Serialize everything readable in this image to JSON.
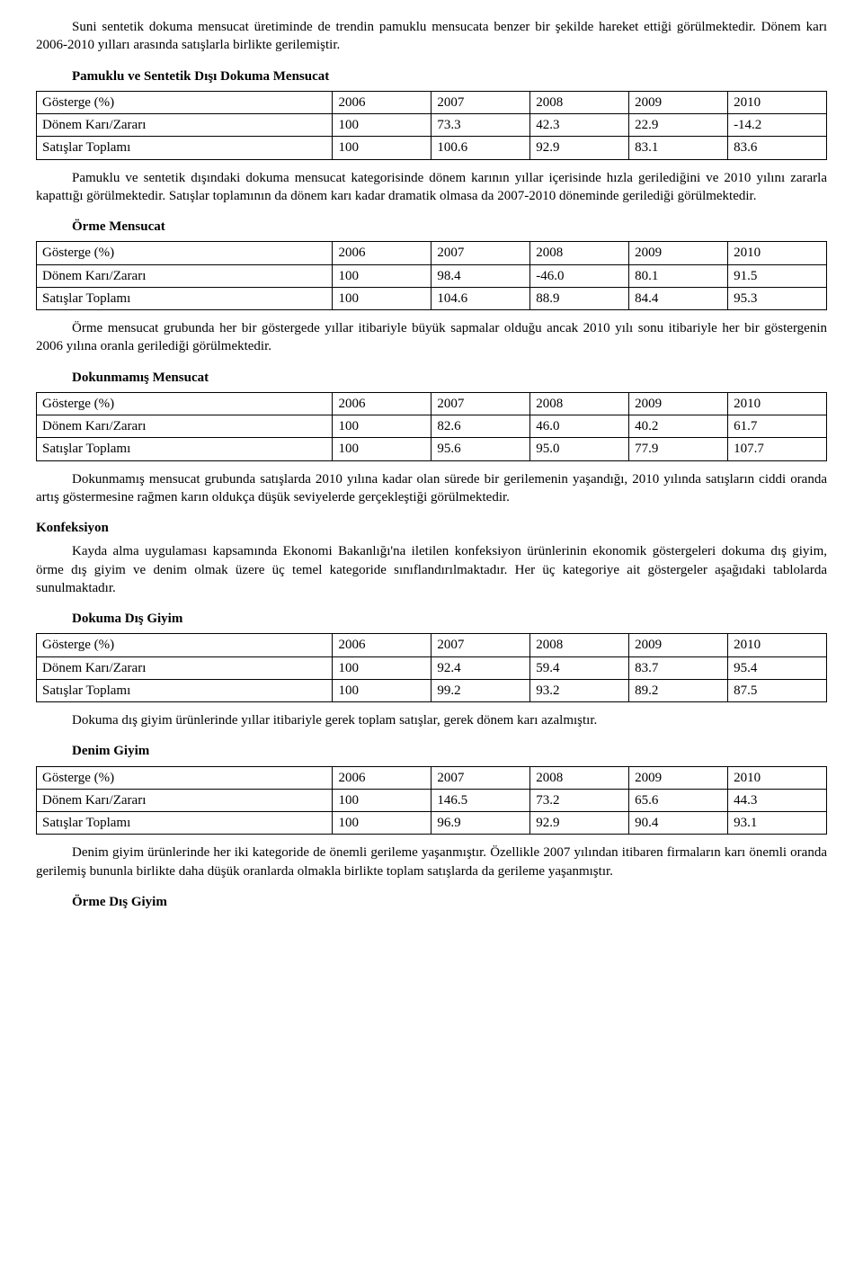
{
  "p_intro": "Suni sentetik dokuma mensucat üretiminde de trendin pamuklu mensucata benzer bir şekilde hareket ettiği görülmektedir. Dönem karı 2006-2010 yılları arasında satışlarla birlikte gerilemiştir.",
  "labels": {
    "gosterge": "Gösterge (%)",
    "donem": "Dönem Karı/Zararı",
    "satis": "Satışlar Toplamı",
    "years": [
      "2006",
      "2007",
      "2008",
      "2009",
      "2010"
    ]
  },
  "t1": {
    "title": "Pamuklu ve Sentetik Dışı Dokuma Mensucat",
    "donem": [
      "100",
      "73.3",
      "42.3",
      "22.9",
      "-14.2"
    ],
    "satis": [
      "100",
      "100.6",
      "92.9",
      "83.1",
      "83.6"
    ]
  },
  "p1": "Pamuklu ve sentetik dışındaki dokuma mensucat kategorisinde dönem karının yıllar içerisinde hızla gerilediğini ve 2010 yılını zararla kapattığı görülmektedir. Satışlar toplamının da dönem karı kadar dramatik olmasa da 2007-2010 döneminde gerilediği görülmektedir.",
  "t2": {
    "title": "Örme Mensucat",
    "donem": [
      "100",
      "98.4",
      "-46.0",
      "80.1",
      "91.5"
    ],
    "satis": [
      "100",
      "104.6",
      "88.9",
      "84.4",
      "95.3"
    ]
  },
  "p2": "Örme mensucat grubunda her bir göstergede yıllar itibariyle büyük sapmalar olduğu ancak 2010 yılı sonu itibariyle her bir göstergenin 2006 yılına oranla gerilediği görülmektedir.",
  "t3": {
    "title": "Dokunmamış Mensucat",
    "donem": [
      "100",
      "82.6",
      "46.0",
      "40.2",
      "61.7"
    ],
    "satis": [
      "100",
      "95.6",
      "95.0",
      "77.9",
      "107.7"
    ]
  },
  "p3": "Dokunmamış mensucat grubunda satışlarda 2010 yılına kadar olan sürede bir gerilemenin yaşandığı, 2010 yılında satışların ciddi oranda artış göstermesine rağmen karın oldukça düşük seviyelerde gerçekleştiği görülmektedir.",
  "h_konf": "Konfeksiyon",
  "p_konf": "Kayda alma uygulaması kapsamında Ekonomi Bakanlığı'na iletilen konfeksiyon ürünlerinin ekonomik göstergeleri dokuma dış giyim, örme dış giyim ve denim olmak üzere üç temel kategoride sınıflandırılmaktadır. Her üç kategoriye ait göstergeler aşağıdaki tablolarda sunulmaktadır.",
  "t4": {
    "title": "Dokuma Dış Giyim",
    "donem": [
      "100",
      "92.4",
      "59.4",
      "83.7",
      "95.4"
    ],
    "satis": [
      "100",
      "99.2",
      "93.2",
      "89.2",
      "87.5"
    ]
  },
  "p4": "Dokuma dış giyim ürünlerinde yıllar itibariyle gerek toplam satışlar, gerek dönem karı azalmıştır.",
  "t5": {
    "title": "Denim Giyim",
    "donem": [
      "100",
      "146.5",
      "73.2",
      "65.6",
      "44.3"
    ],
    "satis": [
      "100",
      "96.9",
      "92.9",
      "90.4",
      "93.1"
    ]
  },
  "p5": "Denim giyim ürünlerinde her iki kategoride de önemli gerileme yaşanmıştır. Özellikle 2007 yılından itibaren firmaların karı önemli oranda gerilemiş bununla birlikte daha düşük oranlarda olmakla birlikte toplam satışlarda da gerileme yaşanmıştır.",
  "t6_title": "Örme Dış Giyim"
}
